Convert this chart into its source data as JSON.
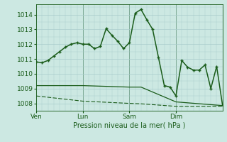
{
  "background_color": "#cce8e2",
  "grid_color": "#aacccc",
  "line_color": "#1a5c1a",
  "xlabel": "Pression niveau de la mer( hPa )",
  "xlim": [
    0,
    96
  ],
  "ylim": [
    1007.5,
    1014.7
  ],
  "yticks": [
    1008,
    1009,
    1010,
    1011,
    1012,
    1013,
    1014
  ],
  "minor_yticks": [
    1007.5,
    1008.5,
    1009.5,
    1010.5,
    1011.5,
    1012.5,
    1013.5,
    1014.5
  ],
  "xtick_positions": [
    0,
    24,
    48,
    72
  ],
  "xtick_labels": [
    "Ven",
    "Lun",
    "Sam",
    "Dim"
  ],
  "series1_x": [
    0,
    3,
    6,
    9,
    12,
    15,
    18,
    21,
    24,
    27,
    30,
    33,
    36,
    39,
    42,
    45,
    48,
    51,
    54,
    57,
    60,
    63,
    66,
    69,
    72,
    75,
    78,
    81,
    84,
    87,
    90,
    93,
    96
  ],
  "series1_y": [
    1010.8,
    1010.75,
    1010.9,
    1011.2,
    1011.5,
    1011.8,
    1012.0,
    1012.1,
    1012.0,
    1012.0,
    1011.7,
    1011.85,
    1013.05,
    1012.6,
    1012.2,
    1011.7,
    1012.1,
    1014.1,
    1014.35,
    1013.65,
    1013.0,
    1011.1,
    1009.2,
    1009.1,
    1008.5,
    1010.9,
    1010.45,
    1010.25,
    1010.25,
    1010.6,
    1009.0,
    1010.5,
    1007.9
  ],
  "series2_x": [
    0,
    24,
    48,
    54,
    72,
    96
  ],
  "series2_y": [
    1009.2,
    1009.2,
    1009.1,
    1009.1,
    1008.1,
    1007.85
  ],
  "series3_x": [
    0,
    24,
    48,
    54,
    72,
    96
  ],
  "series3_y": [
    1008.5,
    1008.15,
    1008.0,
    1007.97,
    1007.8,
    1007.8
  ],
  "vline_positions": [
    0,
    24,
    48,
    72
  ]
}
